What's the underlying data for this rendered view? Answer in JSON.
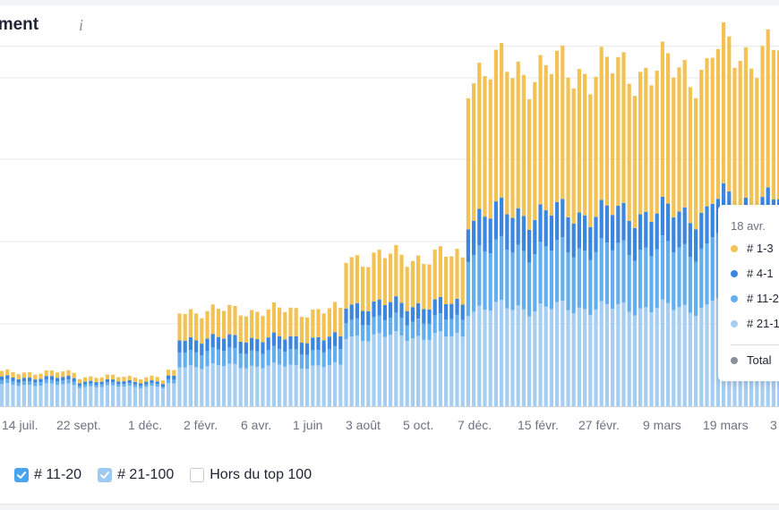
{
  "header": {
    "title": "ssement",
    "info_icon": "info-icon"
  },
  "chart_data": {
    "type": "bar",
    "stacked": true,
    "x_tick_labels": [
      "14 juil.",
      "22 sept.",
      "1 déc.",
      "2 févr.",
      "6 avr.",
      "1 juin",
      "3 août",
      "5 oct.",
      "7 déc.",
      "15 févr.",
      "27 févr.",
      "9 mars",
      "19 mars",
      "3"
    ],
    "colors": {
      "top3": "#f2c354",
      "top4_10": "#3b86de",
      "top11_20": "#62aeee",
      "top21_100": "#a6cef3",
      "grid": "#e6e8ec",
      "axis": "#d0d3da"
    },
    "segments": [
      {
        "n": 14,
        "a": [
          24,
          4,
          4,
          6
        ]
      },
      {
        "n": 15,
        "a": [
          22,
          3,
          3,
          5
        ]
      },
      {
        "n": 1,
        "a": [
          20,
          2,
          3,
          4
        ]
      },
      {
        "n": 2,
        "a": [
          24,
          4,
          4,
          6
        ]
      },
      {
        "n": 30,
        "a": [
          45,
          17,
          14,
          31
        ]
      },
      {
        "n": 22,
        "a": [
          78,
          19,
          17,
          53
        ]
      },
      {
        "n": 44,
        "a": [
          110,
          66,
          40,
          160
        ]
      },
      {
        "n": 13,
        "a": [
          120,
          72,
          38,
          166
        ]
      }
    ]
  },
  "legend": {
    "items": [
      {
        "label": "# 11-20",
        "checked": true,
        "color": "#4aa3ee"
      },
      {
        "label": "# 21-100",
        "checked": true,
        "color": "#9ccaf3"
      },
      {
        "label": "Hors du top 100",
        "checked": false,
        "color": "#ffffff"
      }
    ]
  },
  "tooltip": {
    "date": "18 avr.",
    "rows": [
      {
        "label": "# 1-3",
        "color": "#f2c354"
      },
      {
        "label": "# 4-1",
        "color": "#3b86de"
      },
      {
        "label": "# 11-2",
        "color": "#62aeee"
      },
      {
        "label": "# 21-1",
        "color": "#a6cef3"
      },
      {
        "label": "Total",
        "color": "#8a8f9c"
      }
    ]
  }
}
